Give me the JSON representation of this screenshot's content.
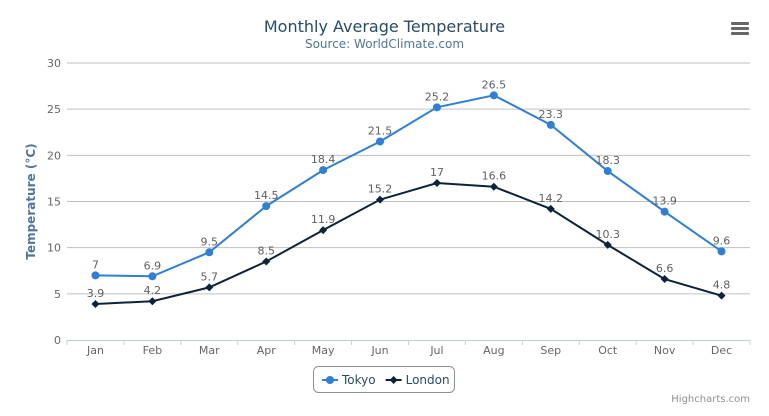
{
  "chart_data": {
    "type": "line",
    "title": "Monthly Average Temperature",
    "subtitle": "Source: WorldClimate.com",
    "ylabel": "Temperature (°C)",
    "xlabel": "",
    "categories": [
      "Jan",
      "Feb",
      "Mar",
      "Apr",
      "May",
      "Jun",
      "Jul",
      "Aug",
      "Sep",
      "Oct",
      "Nov",
      "Dec"
    ],
    "ylim": [
      0,
      30
    ],
    "yticks": [
      0,
      5,
      10,
      15,
      20,
      25,
      30
    ],
    "grid": true,
    "legend": "bottom-center",
    "data_labels": true,
    "series": [
      {
        "name": "Tokyo",
        "color": "#2f7ed8",
        "marker": "circle",
        "values": [
          7,
          6.9,
          9.5,
          14.5,
          18.4,
          21.5,
          25.2,
          26.5,
          23.3,
          18.3,
          13.9,
          9.6
        ]
      },
      {
        "name": "London",
        "color": "#0d233a",
        "marker": "diamond",
        "values": [
          3.9,
          4.2,
          5.7,
          8.5,
          11.9,
          15.2,
          17,
          16.6,
          14.2,
          10.3,
          6.6,
          4.8
        ]
      }
    ]
  },
  "credits": "Highcharts.com",
  "menu_icon": "hamburger-menu-icon"
}
